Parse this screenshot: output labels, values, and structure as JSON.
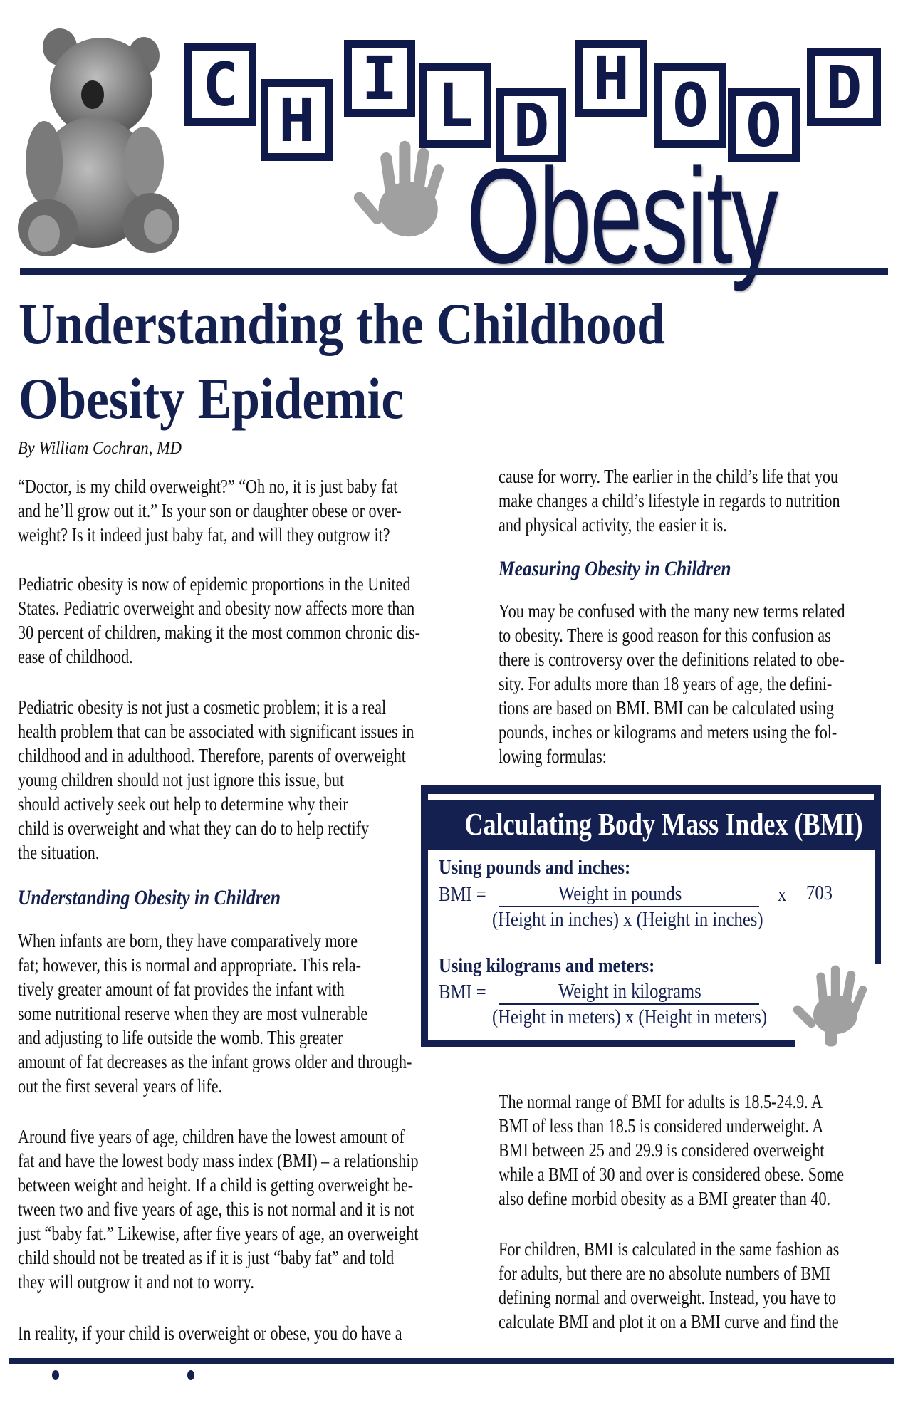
{
  "masthead": {
    "blocks": [
      "C",
      "H",
      "I",
      "L",
      "D",
      "H",
      "O",
      "O",
      "D"
    ],
    "subtitle": "Obesity",
    "colors": {
      "navy": "#14204f",
      "handprint": "#a0a0a0",
      "bear": "#7a7a7a"
    },
    "icons": [
      "teddy-bear-image",
      "handprint-image"
    ]
  },
  "article": {
    "title_line1": "Understanding the Childhood",
    "title_line2": "Obesity Epidemic",
    "byline": "By William Cochran, MD",
    "left": {
      "p1": [
        "“Doctor, is my child overweight?” “Oh no, it is just baby fat",
        "and he’ll grow out it.” Is your son or daughter obese or over-",
        "weight? Is it indeed just baby fat, and will they outgrow it?"
      ],
      "p2": [
        "Pediatric obesity is now of epidemic proportions in the United",
        "States. Pediatric overweight and obesity now affects more than",
        "30 percent of children, making it the most common chronic dis-",
        "ease of childhood."
      ],
      "p3": [
        "Pediatric obesity is not just a cosmetic problem; it is a real",
        "health problem that can be associated with significant issues in",
        "childhood and in adulthood. Therefore, parents of overweight",
        "young children should not just ignore this issue, but",
        "should actively seek out help to determine why their",
        "child is overweight and what they can do to help rectify",
        "the situation."
      ],
      "heading": "Understanding Obesity in Children",
      "p4": [
        "When infants are born, they have comparatively more",
        "fat; however, this is normal and appropriate. This rela-",
        "tively greater amount of fat provides the infant with",
        "some nutritional reserve when they are most vulnerable",
        "and adjusting to life outside the womb. This greater",
        "amount of fat decreases as the infant grows older and through-",
        "out the first several years of life."
      ],
      "p5": [
        "Around five years of age, children have the lowest amount of",
        "fat and have the lowest body mass index (BMI) – a relationship",
        "between weight and height. If a child is getting overweight be-",
        "tween two and five years of age, this is not normal and it is not",
        "just “baby fat.” Likewise, after five years of age, an overweight",
        "child should not be treated as if it is just “baby fat” and told",
        "they will outgrow it and not to worry."
      ],
      "p6": [
        "In reality, if your child is overweight or obese, you do have a"
      ]
    },
    "right": {
      "p1": [
        "cause for worry. The earlier in the child’s life that you",
        "make changes a child’s lifestyle in regards to nutrition",
        "and physical activity, the easier it is."
      ],
      "heading": "Measuring Obesity in Children",
      "p2": [
        "You may be confused with the many new terms related",
        "to obesity. There is good reason for this confusion as",
        "there is controversy over the definitions related to obe-",
        "sity. For adults more than 18 years of age, the defini-",
        "tions are based on BMI. BMI can be calculated using",
        "pounds, inches or kilograms and meters using the fol-",
        "lowing formulas:"
      ],
      "p3": [
        "The normal range of BMI for adults is 18.5-24.9. A",
        "BMI of less than 18.5 is considered underweight. A",
        "BMI between 25 and 29.9 is considered overweight",
        "while a BMI of 30 and over is considered obese. Some",
        "also define morbid obesity as a BMI greater than 40."
      ],
      "p4": [
        "For children, BMI is calculated in the same fashion as",
        "for adults, but there are no absolute numbers of BMI",
        "defining normal and overweight. Instead, you have to",
        "calculate BMI and plot it on a BMI curve and find the"
      ]
    }
  },
  "bmi_box": {
    "title": "Calculating Body Mass Index (BMI)",
    "imperial": {
      "label": "Using pounds and inches:",
      "lhs": "BMI =",
      "numerator": "Weight in pounds",
      "denominator": "(Height in inches) x (Height in inches)",
      "times": "x",
      "factor": "703"
    },
    "metric": {
      "label": "Using kilograms and meters:",
      "lhs": "BMI =",
      "numerator": "Weight in kilograms",
      "denominator": "(Height in meters) x (Height in meters)"
    }
  }
}
